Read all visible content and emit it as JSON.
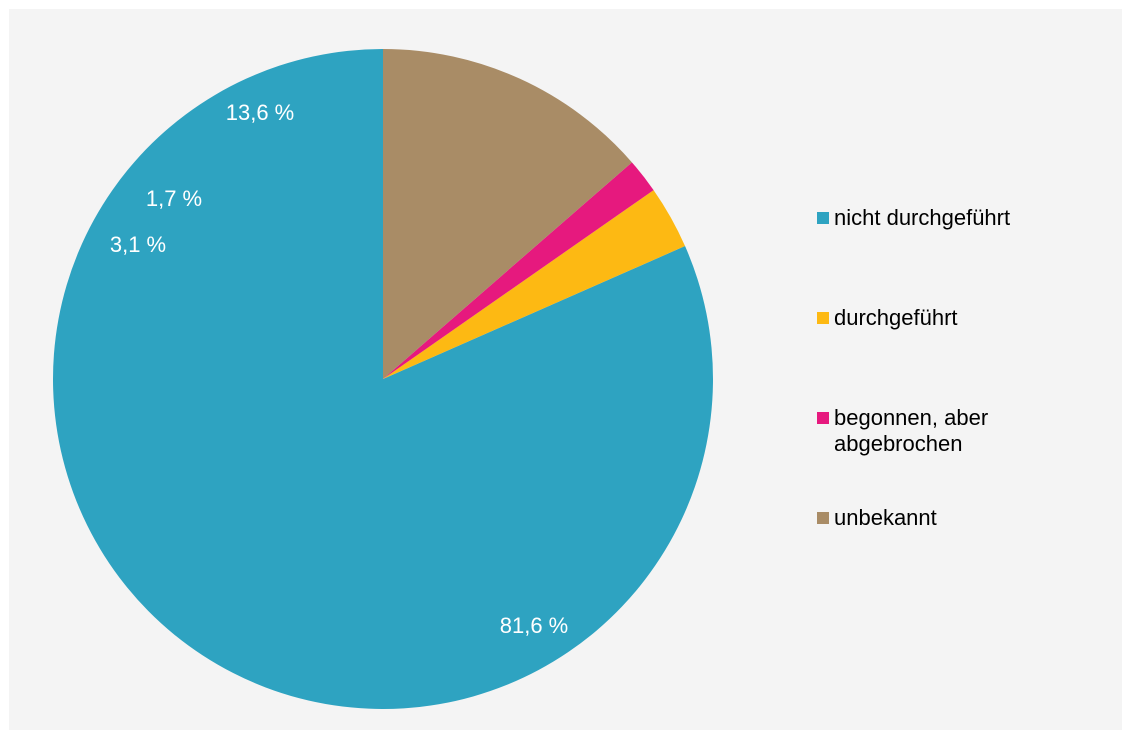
{
  "chart_data": {
    "type": "pie",
    "title": "",
    "start_angle_deg": 0,
    "direction": "counterclockwise",
    "slices": [
      {
        "label": "nicht durchgeführt",
        "value": 81.6,
        "display": "81,6 %",
        "color": "#2ea3c1"
      },
      {
        "label": "durchgeführt",
        "value": 3.1,
        "display": "3,1 %",
        "color": "#fdb913"
      },
      {
        "label": "begonnen, aber abgebrochen",
        "value": 1.7,
        "display": "1,7 %",
        "color": "#e6197e"
      },
      {
        "label": "unbekannt",
        "value": 13.6,
        "display": "13,6 %",
        "color": "#a98c66"
      }
    ],
    "legend": {
      "placement": "right",
      "entries": [
        "nicht durchgeführt",
        "durchgeführt",
        "begonnen, aber\nabgebrochen",
        "unbekannt"
      ]
    },
    "background_color": "#f4f4f4"
  }
}
